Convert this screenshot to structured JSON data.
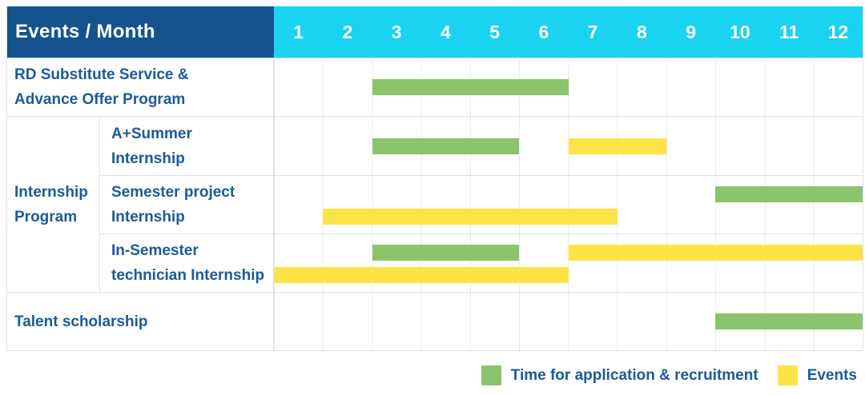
{
  "header": {
    "title": "Events / Month"
  },
  "colors": {
    "header_bg": "#15538E",
    "month_header_bg": "#1AD3F0",
    "header_text": "#FFFFFF",
    "label_text": "#1A5A9C",
    "green": "#8BC46A",
    "yellow": "#FDE345",
    "grid_border": "#DDE1E6",
    "month_line": "#E7EAEE",
    "background": "#FFFFFF"
  },
  "chart_data": {
    "type": "bar",
    "variant": "gantt-timeline",
    "title": "Events / Month",
    "months": [
      "1",
      "2",
      "3",
      "4",
      "5",
      "6",
      "7",
      "8",
      "9",
      "10",
      "11",
      "12"
    ],
    "x_range": [
      1,
      12
    ],
    "grid": true,
    "legend_position": "bottom-right",
    "groups": [
      {
        "label_lines": [
          "RD Substitute Service &",
          "Advance Offer Program"
        ],
        "rows": [
          {
            "label_lines": [],
            "tracks": [
              [
                {
                  "color": "green",
                  "start_month": 3,
                  "end_month": 6
                }
              ]
            ]
          }
        ]
      },
      {
        "label_lines": [
          "Internship",
          "Program"
        ],
        "rows": [
          {
            "label_lines": [
              "A+Summer",
              "Internship"
            ],
            "tracks": [
              [
                {
                  "color": "green",
                  "start_month": 3,
                  "end_month": 5
                },
                {
                  "color": "yellow",
                  "start_month": 7,
                  "end_month": 8
                }
              ]
            ]
          },
          {
            "label_lines": [
              "Semester project",
              "Internship"
            ],
            "tracks": [
              [
                {
                  "color": "green",
                  "start_month": 10,
                  "end_month": 12
                }
              ],
              [
                {
                  "color": "yellow",
                  "start_month": 2,
                  "end_month": 7
                }
              ]
            ]
          },
          {
            "label_lines": [
              "In-Semester",
              "technician Internship"
            ],
            "tracks": [
              [
                {
                  "color": "green",
                  "start_month": 3,
                  "end_month": 5
                },
                {
                  "color": "yellow",
                  "start_month": 7,
                  "end_month": 12
                }
              ],
              [
                {
                  "color": "yellow",
                  "start_month": 1,
                  "end_month": 6
                }
              ]
            ]
          }
        ]
      },
      {
        "label_lines": [
          "Talent scholarship"
        ],
        "rows": [
          {
            "label_lines": [],
            "tracks": [
              [
                {
                  "color": "green",
                  "start_month": 10,
                  "end_month": 12
                }
              ]
            ]
          }
        ]
      }
    ],
    "legend": [
      {
        "color": "green",
        "label": "Time for application & recruitment"
      },
      {
        "color": "yellow",
        "label": "Events"
      }
    ]
  }
}
